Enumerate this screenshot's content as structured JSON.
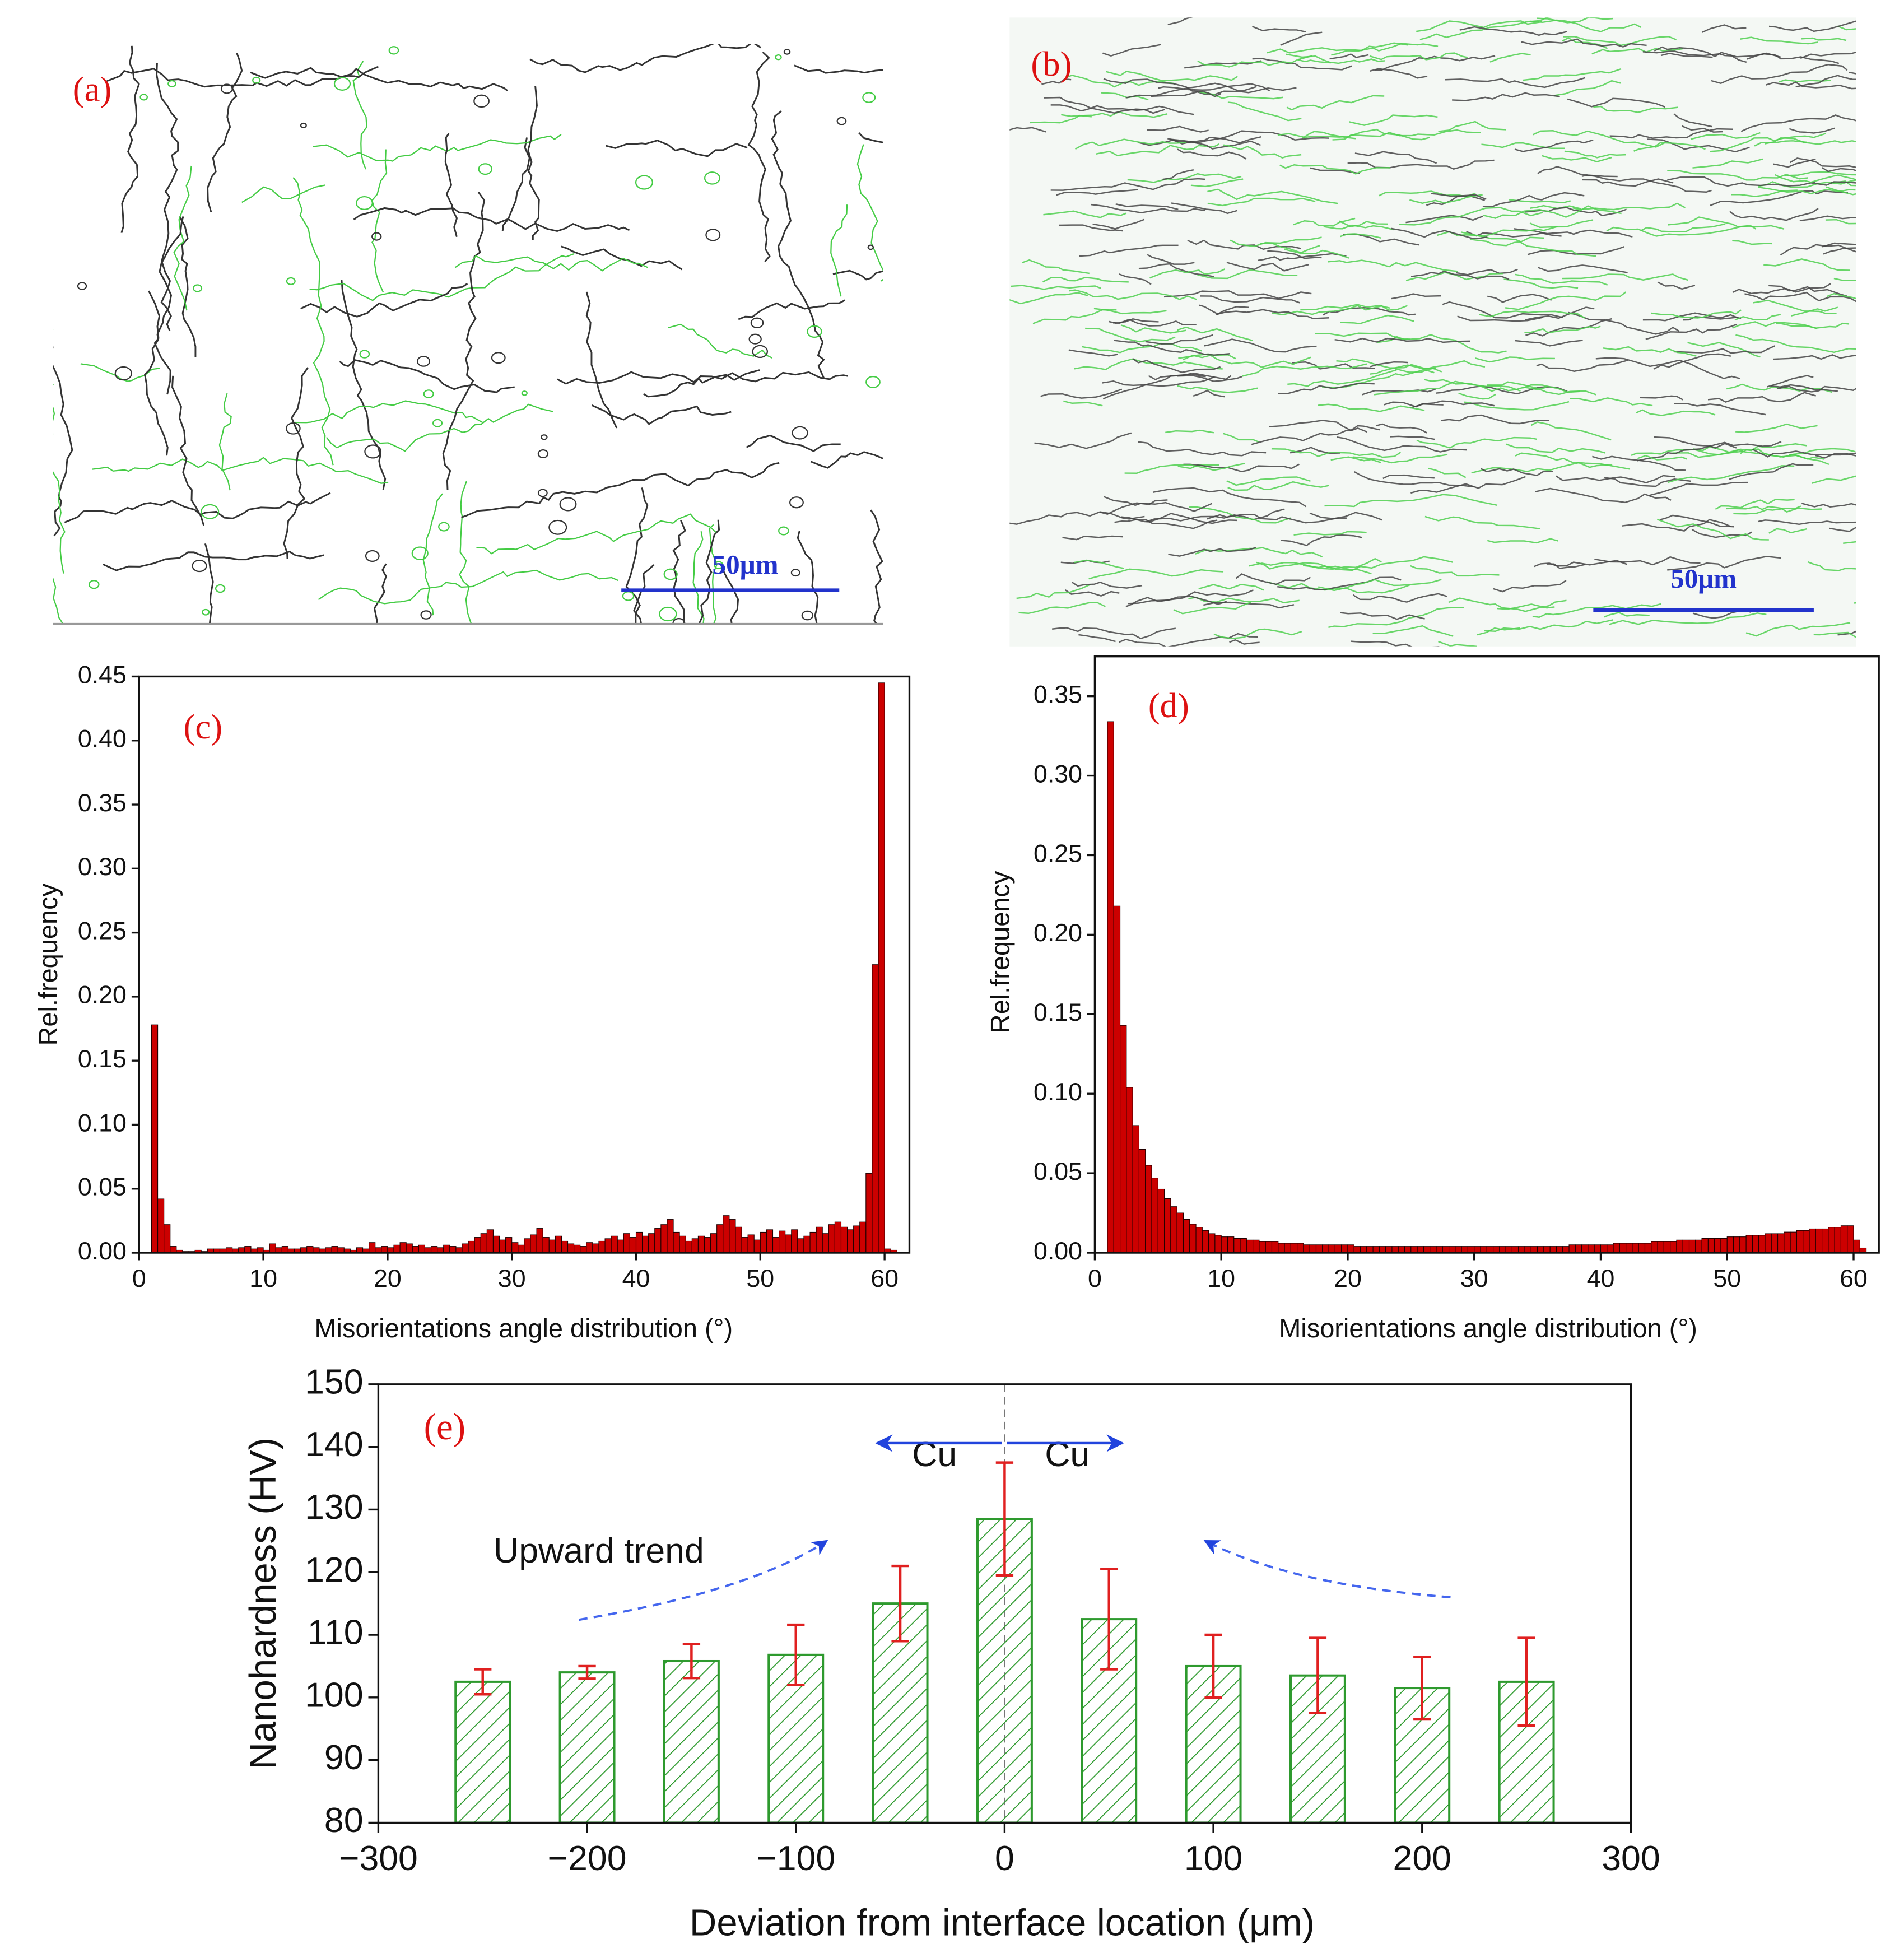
{
  "images": [
    {
      "label": "(a)",
      "scale_bar": "50μm"
    },
    {
      "label": "(b)",
      "scale_bar": "50μm"
    }
  ],
  "chart_data": [
    {
      "type": "histogram",
      "label": "(c)",
      "x_label": "Misorientations angle distribution (°)",
      "y_label": "Rel.frequency",
      "color": "#cc0000",
      "bins": [
        1,
        1.5,
        2,
        2.5,
        3,
        3.5,
        4,
        4.5,
        5,
        5.5,
        6,
        6.5,
        7,
        7.5,
        8,
        8.5,
        9,
        9.5,
        10,
        10.5,
        11,
        11.5,
        12,
        12.5,
        13,
        13.5,
        14,
        14.5,
        15,
        15.5,
        16,
        16.5,
        17,
        17.5,
        18,
        18.5,
        19,
        19.5,
        20,
        20.5,
        21,
        21.5,
        22,
        22.5,
        23,
        23.5,
        24,
        24.5,
        25,
        25.5,
        26,
        26.5,
        27,
        27.5,
        28,
        28.5,
        29,
        29.5,
        30,
        30.5,
        31,
        31.5,
        32,
        32.5,
        33,
        33.5,
        34,
        34.5,
        35,
        35.5,
        36,
        36.5,
        37,
        37.5,
        38,
        38.5,
        39,
        39.5,
        40,
        40.5,
        41,
        41.5,
        42,
        42.5,
        43,
        43.5,
        44,
        44.5,
        45,
        45.5,
        46,
        46.5,
        47,
        47.5,
        48,
        48.5,
        49,
        49.5,
        50,
        50.5,
        51,
        51.5,
        52,
        52.5,
        53,
        53.5,
        54,
        54.5,
        55,
        55.5,
        56,
        56.5,
        57,
        57.5,
        58,
        58.5,
        59,
        59.5,
        60,
        60.5,
        61
      ],
      "values": [
        0.178,
        0.042,
        0.022,
        0.005,
        0.002,
        0.001,
        0.001,
        0.002,
        0.001,
        0.003,
        0.003,
        0.003,
        0.004,
        0.003,
        0.004,
        0.005,
        0.003,
        0.004,
        0.002,
        0.007,
        0.004,
        0.005,
        0.003,
        0.003,
        0.004,
        0.005,
        0.004,
        0.003,
        0.004,
        0.005,
        0.004,
        0.003,
        0.002,
        0.004,
        0.003,
        0.008,
        0.004,
        0.005,
        0.004,
        0.006,
        0.008,
        0.007,
        0.005,
        0.006,
        0.004,
        0.005,
        0.004,
        0.006,
        0.005,
        0.004,
        0.007,
        0.009,
        0.012,
        0.015,
        0.018,
        0.013,
        0.01,
        0.012,
        0.008,
        0.006,
        0.011,
        0.014,
        0.019,
        0.012,
        0.01,
        0.013,
        0.009,
        0.007,
        0.006,
        0.005,
        0.008,
        0.007,
        0.009,
        0.011,
        0.013,
        0.01,
        0.015,
        0.012,
        0.016,
        0.013,
        0.015,
        0.019,
        0.022,
        0.026,
        0.016,
        0.013,
        0.009,
        0.011,
        0.013,
        0.012,
        0.015,
        0.022,
        0.029,
        0.026,
        0.02,
        0.012,
        0.014,
        0.01,
        0.016,
        0.018,
        0.012,
        0.017,
        0.014,
        0.018,
        0.011,
        0.013,
        0.016,
        0.02,
        0.015,
        0.022,
        0.024,
        0.02,
        0.018,
        0.021,
        0.024,
        0.062,
        0.225,
        0.445,
        0.003,
        0.002
      ],
      "xlim": [
        0,
        62
      ],
      "ylim": [
        0,
        0.45
      ],
      "xticks": [
        0,
        10,
        20,
        30,
        40,
        50,
        60
      ],
      "yticks": [
        {
          "value": 0,
          "label": "0.00"
        },
        {
          "value": 0.05,
          "label": "0.05"
        },
        {
          "value": 0.1,
          "label": "0.10"
        },
        {
          "value": 0.15,
          "label": "0.15"
        },
        {
          "value": 0.2,
          "label": "0.20"
        },
        {
          "value": 0.25,
          "label": "0.25"
        },
        {
          "value": 0.3,
          "label": "0.30"
        },
        {
          "value": 0.35,
          "label": "0.35"
        },
        {
          "value": 0.4,
          "label": "0.40"
        },
        {
          "value": 0.45,
          "label": "0.45"
        }
      ]
    },
    {
      "type": "histogram",
      "label": "(d)",
      "x_label": "Misorientations angle distribution (°)",
      "y_label": "Rel.frequency",
      "color": "#cc0000",
      "bins": [
        1,
        1.5,
        2,
        2.5,
        3,
        3.5,
        4,
        4.5,
        5,
        5.5,
        6,
        6.5,
        7,
        7.5,
        8,
        8.5,
        9,
        9.5,
        10,
        10.5,
        11,
        11.5,
        12,
        12.5,
        13,
        13.5,
        14,
        14.5,
        15,
        15.5,
        16,
        16.5,
        17,
        17.5,
        18,
        18.5,
        19,
        19.5,
        20,
        20.5,
        21,
        21.5,
        22,
        22.5,
        23,
        23.5,
        24,
        24.5,
        25,
        25.5,
        26,
        26.5,
        27,
        27.5,
        28,
        28.5,
        29,
        29.5,
        30,
        30.5,
        31,
        31.5,
        32,
        32.5,
        33,
        33.5,
        34,
        34.5,
        35,
        35.5,
        36,
        36.5,
        37,
        37.5,
        38,
        38.5,
        39,
        39.5,
        40,
        40.5,
        41,
        41.5,
        42,
        42.5,
        43,
        43.5,
        44,
        44.5,
        45,
        45.5,
        46,
        46.5,
        47,
        47.5,
        48,
        48.5,
        49,
        49.5,
        50,
        50.5,
        51,
        51.5,
        52,
        52.5,
        53,
        53.5,
        54,
        54.5,
        55,
        55.5,
        56,
        56.5,
        57,
        57.5,
        58,
        58.5,
        59,
        59.5,
        60,
        60.5,
        61
      ],
      "values": [
        0.334,
        0.218,
        0.143,
        0.104,
        0.08,
        0.065,
        0.055,
        0.047,
        0.04,
        0.034,
        0.029,
        0.025,
        0.021,
        0.018,
        0.016,
        0.014,
        0.012,
        0.011,
        0.01,
        0.01,
        0.009,
        0.009,
        0.008,
        0.008,
        0.007,
        0.007,
        0.007,
        0.006,
        0.006,
        0.006,
        0.006,
        0.005,
        0.005,
        0.005,
        0.005,
        0.005,
        0.005,
        0.005,
        0.005,
        0.004,
        0.004,
        0.004,
        0.004,
        0.004,
        0.004,
        0.004,
        0.004,
        0.004,
        0.004,
        0.004,
        0.004,
        0.004,
        0.004,
        0.004,
        0.004,
        0.004,
        0.004,
        0.004,
        0.004,
        0.004,
        0.004,
        0.004,
        0.004,
        0.004,
        0.004,
        0.004,
        0.004,
        0.004,
        0.004,
        0.004,
        0.004,
        0.004,
        0.004,
        0.005,
        0.005,
        0.005,
        0.005,
        0.005,
        0.005,
        0.005,
        0.006,
        0.006,
        0.006,
        0.006,
        0.006,
        0.006,
        0.007,
        0.007,
        0.007,
        0.007,
        0.008,
        0.008,
        0.008,
        0.008,
        0.009,
        0.009,
        0.009,
        0.009,
        0.01,
        0.01,
        0.01,
        0.011,
        0.011,
        0.011,
        0.012,
        0.012,
        0.012,
        0.013,
        0.013,
        0.014,
        0.014,
        0.015,
        0.015,
        0.015,
        0.016,
        0.016,
        0.017,
        0.017,
        0.008,
        0.003
      ],
      "xlim": [
        0,
        62
      ],
      "ylim": [
        0,
        0.375
      ],
      "xticks": [
        0,
        10,
        20,
        30,
        40,
        50,
        60
      ],
      "yticks": [
        {
          "value": 0,
          "label": "0.00"
        },
        {
          "value": 0.05,
          "label": "0.05"
        },
        {
          "value": 0.1,
          "label": "0.10"
        },
        {
          "value": 0.15,
          "label": "0.15"
        },
        {
          "value": 0.2,
          "label": "0.20"
        },
        {
          "value": 0.25,
          "label": "0.25"
        },
        {
          "value": 0.3,
          "label": "0.30"
        },
        {
          "value": 0.35,
          "label": "0.35"
        }
      ]
    },
    {
      "type": "bar",
      "label": "(e)",
      "x_label": "Deviation from interface location (μm)",
      "y_label": "Nanohardness (HV)",
      "color": "#2e9a2e",
      "error_color": "#e02020",
      "x": [
        -250,
        -200,
        -150,
        -100,
        -50,
        0,
        50,
        100,
        150,
        200,
        250
      ],
      "values": [
        102.5,
        104,
        105.8,
        106.8,
        115,
        128.5,
        112.5,
        105,
        103.5,
        101.5,
        102.5
      ],
      "errors": [
        2,
        1,
        2.7,
        4.8,
        6,
        9,
        8,
        5,
        6,
        5,
        7
      ],
      "xlim": [
        -300,
        300
      ],
      "ylim": [
        80,
        150
      ],
      "xticks": [
        {
          "value": -300,
          "label": "−300"
        },
        {
          "value": -200,
          "label": "−200"
        },
        {
          "value": -100,
          "label": "−100"
        },
        0,
        100,
        200,
        300
      ],
      "yticks": [
        80,
        90,
        100,
        110,
        120,
        130,
        140,
        150
      ],
      "annotations": [
        "Cu",
        "Cu",
        "Upward trend"
      ]
    }
  ]
}
